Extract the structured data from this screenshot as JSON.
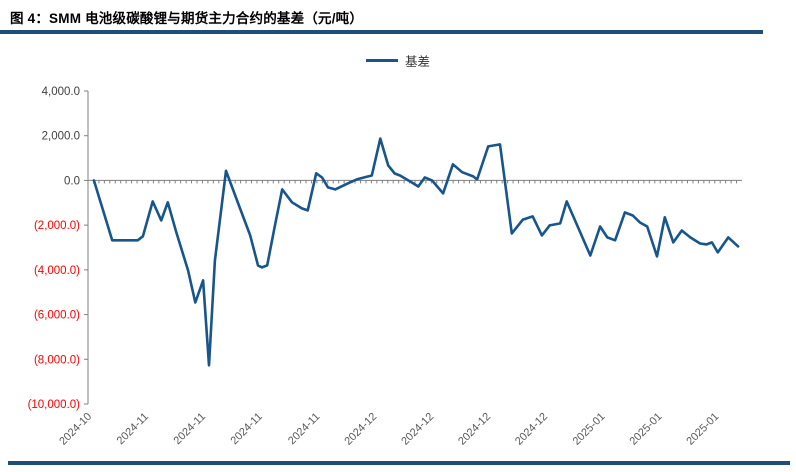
{
  "header": {
    "title": "图 4：SMM 电池级碳酸锂与期货主力合约的基差（元/吨）"
  },
  "colors": {
    "series_navy": "#17558C",
    "rule_navy": "#1F4E79",
    "negative_red": "#FF0000",
    "axis_gray": "#808080",
    "tick_label_gray": "#595959",
    "y_label_black": "#404040"
  },
  "chart_data": {
    "type": "line",
    "title": "SMM 电池级碳酸锂与期货主力合约的基差（元/吨）",
    "unit": "元/吨",
    "legend_position": "top-center",
    "grid": "zero-line-only-dotted",
    "ylim": [
      -10000,
      4000
    ],
    "y_ticks": [
      4000,
      2000,
      0,
      -2000,
      -4000,
      -6000,
      -8000,
      -10000
    ],
    "y_tick_labels": [
      "4,000.0",
      "2,000.0",
      "0.0",
      "(2,000.0)",
      "(4,000.0)",
      "(6,000.0)",
      "(8,000.0)",
      "(10,000.0)"
    ],
    "x_tick_labels": [
      "2024-10",
      "2024-11",
      "2024-11",
      "2024-11",
      "2024-11",
      "2024-12",
      "2024-12",
      "2024-12",
      "2024-12",
      "2025-01",
      "2025-01",
      "2025-01"
    ],
    "x_tick_positions": [
      -0.009,
      0.078,
      0.165,
      0.252,
      0.34,
      0.427,
      0.514,
      0.601,
      0.688,
      0.776,
      0.863,
      0.95
    ],
    "series": [
      {
        "name": "基差",
        "color": "#17558C",
        "points": [
          [
            0.009,
            0
          ],
          [
            0.037,
            -2680
          ],
          [
            0.049,
            -2680
          ],
          [
            0.064,
            -2680
          ],
          [
            0.076,
            -2680
          ],
          [
            0.084,
            -2500
          ],
          [
            0.099,
            -940
          ],
          [
            0.112,
            -1790
          ],
          [
            0.122,
            -980
          ],
          [
            0.135,
            -2320
          ],
          [
            0.153,
            -4030
          ],
          [
            0.164,
            -5460
          ],
          [
            0.176,
            -4470
          ],
          [
            0.185,
            -8270
          ],
          [
            0.194,
            -3580
          ],
          [
            0.211,
            430
          ],
          [
            0.232,
            -1210
          ],
          [
            0.248,
            -2460
          ],
          [
            0.26,
            -3800
          ],
          [
            0.266,
            -3890
          ],
          [
            0.274,
            -3800
          ],
          [
            0.286,
            -2000
          ],
          [
            0.297,
            -400
          ],
          [
            0.312,
            -980
          ],
          [
            0.327,
            -1250
          ],
          [
            0.336,
            -1340
          ],
          [
            0.349,
            320
          ],
          [
            0.358,
            130
          ],
          [
            0.367,
            -310
          ],
          [
            0.378,
            -400
          ],
          [
            0.396,
            -150
          ],
          [
            0.411,
            45
          ],
          [
            0.424,
            150
          ],
          [
            0.434,
            220
          ],
          [
            0.447,
            1870
          ],
          [
            0.459,
            670
          ],
          [
            0.469,
            310
          ],
          [
            0.477,
            220
          ],
          [
            0.495,
            -90
          ],
          [
            0.505,
            -270
          ],
          [
            0.515,
            130
          ],
          [
            0.526,
            0
          ],
          [
            0.543,
            -580
          ],
          [
            0.558,
            720
          ],
          [
            0.572,
            370
          ],
          [
            0.589,
            180
          ],
          [
            0.595,
            40
          ],
          [
            0.612,
            1520
          ],
          [
            0.63,
            1610
          ],
          [
            0.648,
            -2370
          ],
          [
            0.665,
            -1750
          ],
          [
            0.68,
            -1610
          ],
          [
            0.694,
            -2460
          ],
          [
            0.706,
            -2010
          ],
          [
            0.722,
            -1920
          ],
          [
            0.732,
            -940
          ],
          [
            0.748,
            -2010
          ],
          [
            0.768,
            -3360
          ],
          [
            0.783,
            -2060
          ],
          [
            0.794,
            -2550
          ],
          [
            0.806,
            -2680
          ],
          [
            0.821,
            -1430
          ],
          [
            0.833,
            -1570
          ],
          [
            0.844,
            -1880
          ],
          [
            0.855,
            -2060
          ],
          [
            0.87,
            -3400
          ],
          [
            0.882,
            -1650
          ],
          [
            0.895,
            -2770
          ],
          [
            0.908,
            -2240
          ],
          [
            0.921,
            -2550
          ],
          [
            0.936,
            -2820
          ],
          [
            0.946,
            -2860
          ],
          [
            0.954,
            -2770
          ],
          [
            0.963,
            -3220
          ],
          [
            0.979,
            -2550
          ],
          [
            0.994,
            -2950
          ]
        ]
      }
    ]
  }
}
